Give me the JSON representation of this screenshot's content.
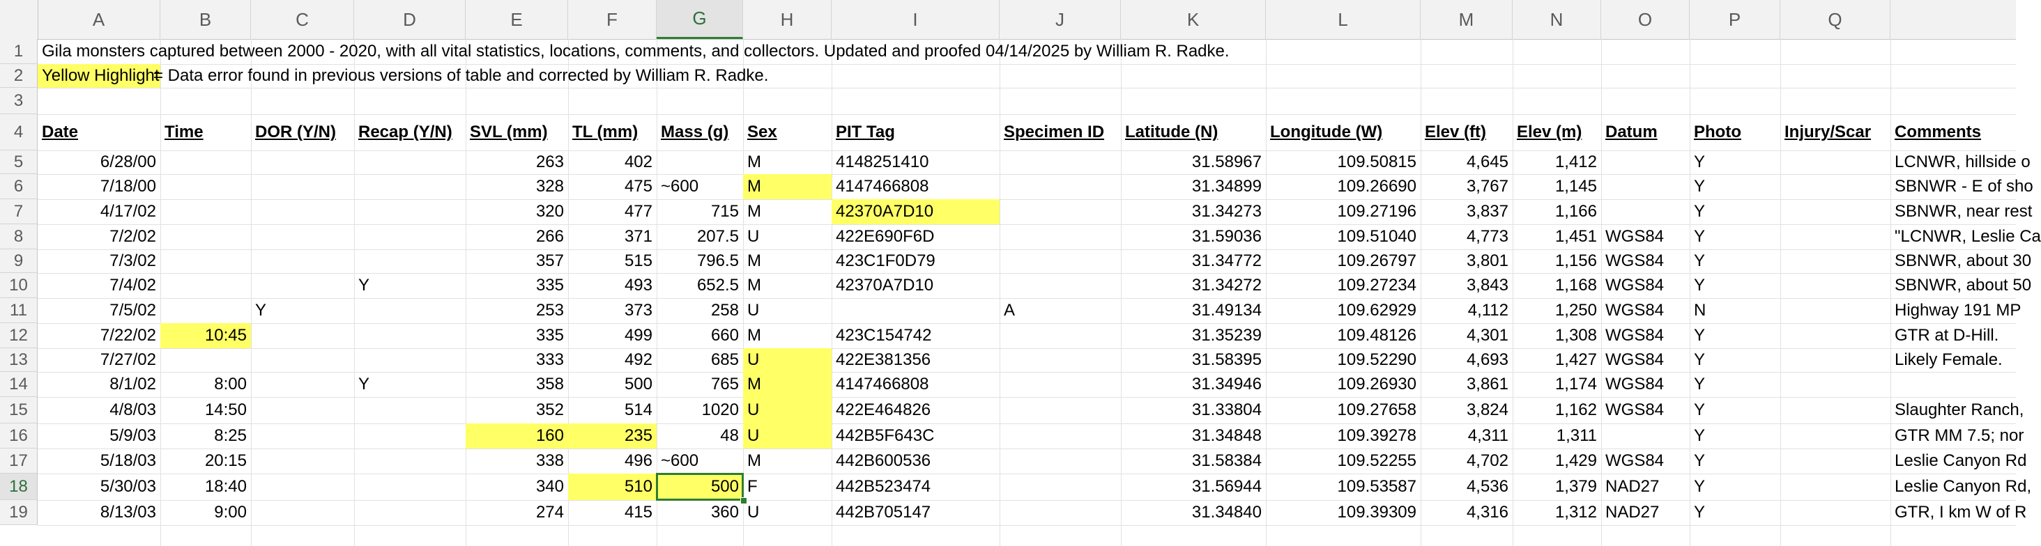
{
  "column_letters": [
    "A",
    "B",
    "C",
    "D",
    "E",
    "F",
    "G",
    "H",
    "I",
    "J",
    "K",
    "L",
    "M",
    "N",
    "O",
    "P",
    "Q"
  ],
  "row_numbers": [
    "1",
    "2",
    "3",
    "4",
    "5",
    "6",
    "7",
    "8",
    "9",
    "10",
    "11",
    "12",
    "13",
    "14",
    "15",
    "16",
    "17",
    "18",
    "19"
  ],
  "selected_column": "G",
  "selected_row": "18",
  "highlight_color": "#ffff66",
  "selection_color": "#2e7d32",
  "notes": {
    "title": "Gila monsters captured between 2000 - 2020, with all vital statistics, locations, comments, and collectors. Updated and proofed 04/14/2025 by William R. Radke.",
    "legend_key": "Yellow Highlight",
    "legend_text": " = Data error found in previous versions of table and corrected by William R. Radke."
  },
  "headers": [
    "Date",
    "Time",
    "DOR (Y/N)",
    "Recap (Y/N)",
    "SVL (mm)",
    "TL (mm)",
    "Mass (g)",
    "Sex",
    "PIT Tag",
    "Specimen ID",
    "Latitude (N)",
    "Longitude (W)",
    "Elev (ft)",
    "Elev (m)",
    "Datum",
    "Photo",
    "Injury/Scar",
    "Comments"
  ],
  "rows": [
    {
      "cells": [
        "6/28/00",
        "",
        "",
        "",
        "263",
        "402",
        "",
        "M",
        "4148251410",
        "",
        "31.58967",
        "109.50815",
        "4,645",
        "1,412",
        "",
        "Y",
        "",
        "LCNWR, hillside o"
      ],
      "hl": []
    },
    {
      "cells": [
        "7/18/00",
        "",
        "",
        "",
        "328",
        "475",
        "~600",
        "M",
        "4147466808",
        "",
        "31.34899",
        "109.26690",
        "3,767",
        "1,145",
        "",
        "Y",
        "",
        "SBNWR - E of sho"
      ],
      "hl": [
        7
      ]
    },
    {
      "cells": [
        "4/17/02",
        "",
        "",
        "",
        "320",
        "477",
        "715",
        "M",
        "42370A7D10",
        "",
        "31.34273",
        "109.27196",
        "3,837",
        "1,166",
        "",
        "Y",
        "",
        "SBNWR, near rest"
      ],
      "hl": [
        8
      ]
    },
    {
      "cells": [
        "7/2/02",
        "",
        "",
        "",
        "266",
        "371",
        "207.5",
        "U",
        "422E690F6D",
        "",
        "31.59036",
        "109.51040",
        "4,773",
        "1,451",
        "WGS84",
        "Y",
        "",
        "\"LCNWR, Leslie Ca"
      ],
      "hl": []
    },
    {
      "cells": [
        "7/3/02",
        "",
        "",
        "",
        "357",
        "515",
        "796.5",
        "M",
        "423C1F0D79",
        "",
        "31.34772",
        "109.26797",
        "3,801",
        "1,156",
        "WGS84",
        "Y",
        "",
        "SBNWR, about 30"
      ],
      "hl": []
    },
    {
      "cells": [
        "7/4/02",
        "",
        "",
        "Y",
        "335",
        "493",
        "652.5",
        "M",
        "42370A7D10",
        "",
        "31.34272",
        "109.27234",
        "3,843",
        "1,168",
        "WGS84",
        "Y",
        "",
        "SBNWR, about 50"
      ],
      "hl": []
    },
    {
      "cells": [
        "7/5/02",
        "",
        "Y",
        "",
        "253",
        "373",
        "258",
        "U",
        "",
        "A",
        "31.49134",
        "109.62929",
        "4,112",
        "1,250",
        "WGS84",
        "N",
        "",
        "Highway 191 MP"
      ],
      "hl": []
    },
    {
      "cells": [
        "7/22/02",
        "10:45",
        "",
        "",
        "335",
        "499",
        "660",
        "M",
        "423C154742",
        "",
        "31.35239",
        "109.48126",
        "4,301",
        "1,308",
        "WGS84",
        "Y",
        "",
        "GTR at D-Hill."
      ],
      "hl": [
        1
      ]
    },
    {
      "cells": [
        "7/27/02",
        "",
        "",
        "",
        "333",
        "492",
        "685",
        "U",
        "422E381356",
        "",
        "31.58395",
        "109.52290",
        "4,693",
        "1,427",
        "WGS84",
        "Y",
        "",
        "Likely Female."
      ],
      "hl": [
        7
      ]
    },
    {
      "cells": [
        "8/1/02",
        "8:00",
        "",
        "Y",
        "358",
        "500",
        "765",
        "M",
        "4147466808",
        "",
        "31.34946",
        "109.26930",
        "3,861",
        "1,174",
        "WGS84",
        "Y",
        "",
        ""
      ],
      "hl": [
        7
      ]
    },
    {
      "cells": [
        "4/8/03",
        "14:50",
        "",
        "",
        "352",
        "514",
        "1020",
        "U",
        "422E464826",
        "",
        "31.33804",
        "109.27658",
        "3,824",
        "1,162",
        "WGS84",
        "Y",
        "",
        "Slaughter Ranch,"
      ],
      "hl": [
        7
      ]
    },
    {
      "cells": [
        "5/9/03",
        "8:25",
        "",
        "",
        "160",
        "235",
        "48",
        "U",
        "442B5F643C",
        "",
        "31.34848",
        "109.39278",
        "4,311",
        "1,311",
        "",
        "Y",
        "",
        "GTR MM 7.5; nor"
      ],
      "hl": [
        4,
        5,
        7
      ]
    },
    {
      "cells": [
        "5/18/03",
        "20:15",
        "",
        "",
        "338",
        "496",
        "~600",
        "M",
        "442B600536",
        "",
        "31.58384",
        "109.52255",
        "4,702",
        "1,429",
        "WGS84",
        "Y",
        "",
        "Leslie Canyon Rd"
      ],
      "hl": []
    },
    {
      "cells": [
        "5/30/03",
        "18:40",
        "",
        "",
        "340",
        "510",
        "500",
        "F",
        "442B523474",
        "",
        "31.56944",
        "109.53587",
        "4,536",
        "1,379",
        "NAD27",
        "Y",
        "",
        "Leslie Canyon Rd,"
      ],
      "hl": [
        5,
        6
      ]
    },
    {
      "cells": [
        "8/13/03",
        "9:00",
        "",
        "",
        "274",
        "415",
        "360",
        "U",
        "442B705147",
        "",
        "31.34840",
        "109.39309",
        "4,316",
        "1,312",
        "NAD27",
        "Y",
        "",
        "GTR, I km W of R"
      ],
      "hl": []
    }
  ]
}
